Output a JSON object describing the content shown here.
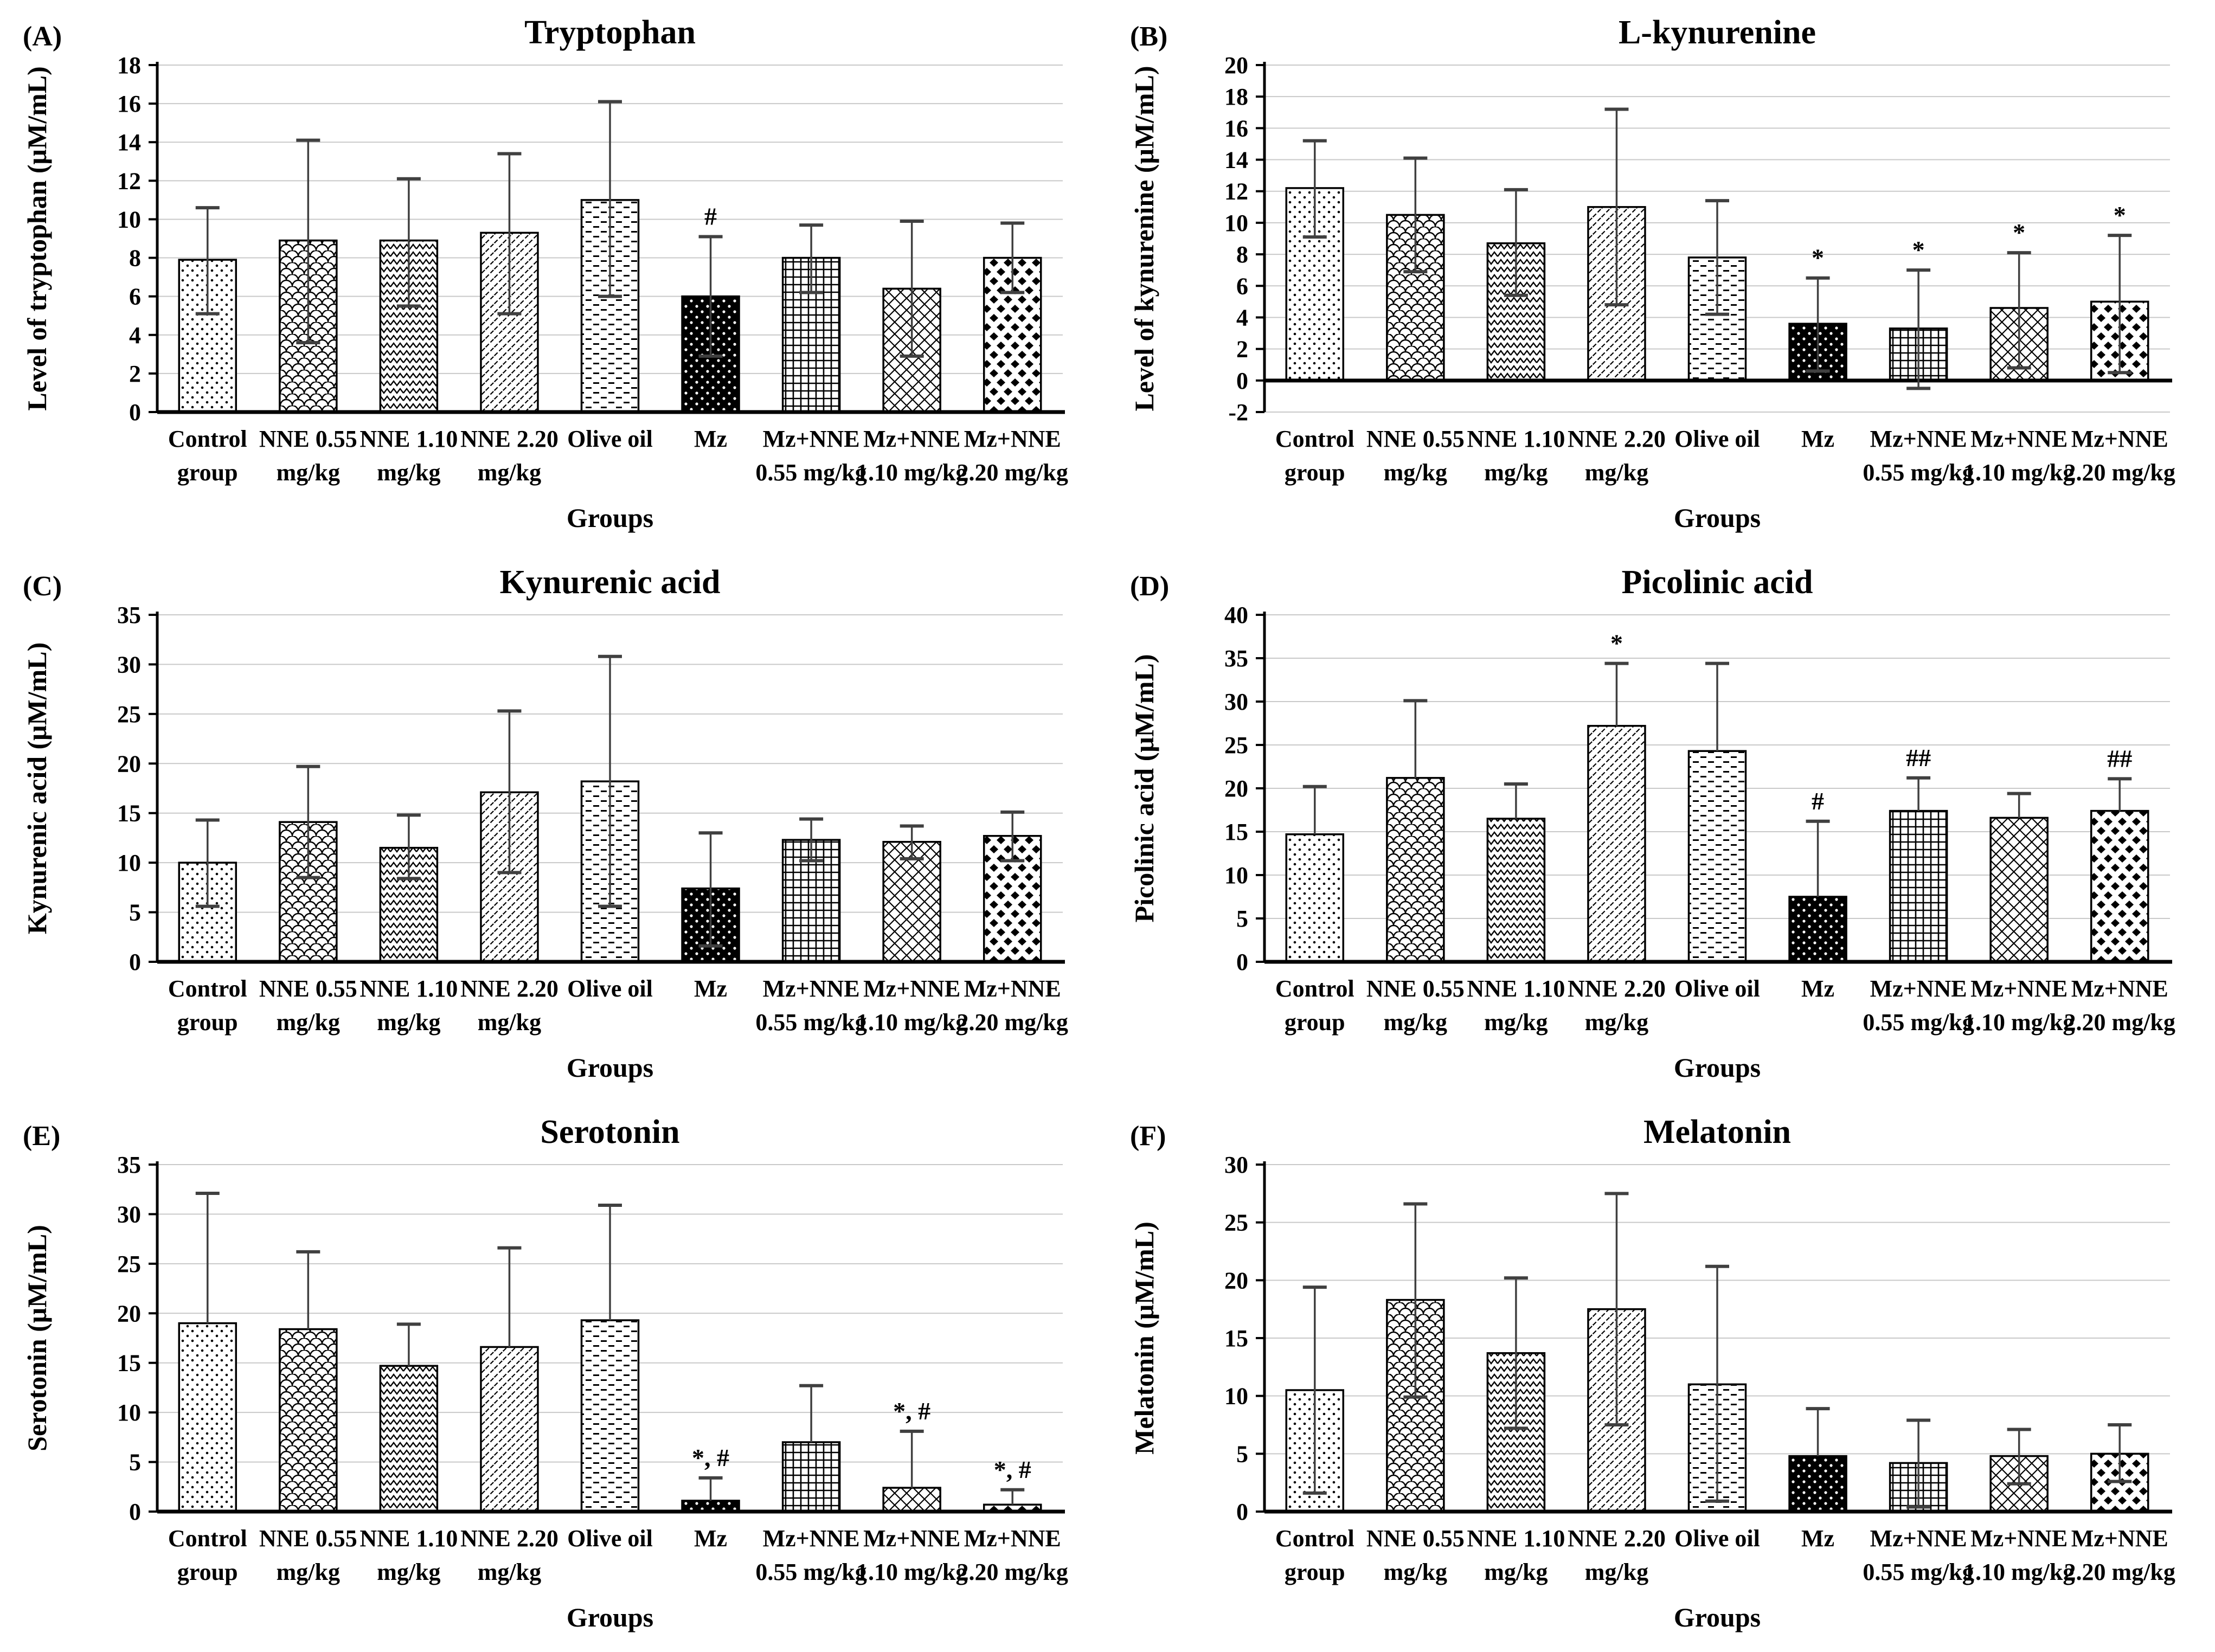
{
  "page": {
    "background": "#ffffff"
  },
  "colors": {
    "bar_stroke": "#000000",
    "bar_fill_base": "#ffffff",
    "grid": "#c9c9c9",
    "error_bar": "#404040",
    "axis": "#000000",
    "text": "#000000"
  },
  "xlabel": "Groups",
  "categories": [
    [
      "Control",
      "group"
    ],
    [
      "NNE 0.55",
      "mg/kg"
    ],
    [
      "NNE 1.10",
      "mg/kg"
    ],
    [
      "NNE 2.20",
      "mg/kg"
    ],
    [
      "Olive oil",
      ""
    ],
    [
      "Mz",
      ""
    ],
    [
      "Mz+NNE",
      "0.55 mg/kg"
    ],
    [
      "Mz+NNE",
      "1.10 mg/kg"
    ],
    [
      "Mz+NNE",
      "2.20 mg/kg"
    ]
  ],
  "pattern_names": [
    "dots",
    "fish-scales",
    "zigzag-chevron",
    "diagonal-dashes",
    "horizontal-dashes",
    "black-with-white-dots",
    "grid-plaid",
    "diamond-crosshatch",
    "black-diamonds"
  ],
  "chart_data": [
    {
      "panel": "(A)",
      "type": "bar",
      "title": "Tryptophan",
      "ylabel": "Level of tryptophan (μM/mL)",
      "ylim": [
        0,
        18
      ],
      "ystep": 2,
      "grid": true,
      "values": [
        7.9,
        8.9,
        8.9,
        9.3,
        11.0,
        6.0,
        8.0,
        6.4,
        8.0
      ],
      "err_low": [
        5.1,
        3.6,
        5.5,
        5.1,
        6.0,
        2.9,
        6.2,
        2.9,
        6.2
      ],
      "err_high": [
        10.6,
        14.1,
        12.1,
        13.4,
        16.1,
        9.1,
        9.7,
        9.9,
        9.8
      ],
      "annotations": {
        "5": "#"
      }
    },
    {
      "panel": "(B)",
      "type": "bar",
      "title": "L-kynurenine",
      "ylabel": "Level of kynurenine (μM/mL)",
      "ylim": [
        -2,
        20
      ],
      "ystep": 2,
      "grid": true,
      "values": [
        12.2,
        10.5,
        8.7,
        11.0,
        7.8,
        3.6,
        3.3,
        4.6,
        5.0
      ],
      "err_low": [
        9.1,
        6.9,
        5.4,
        4.8,
        4.2,
        0.6,
        -0.5,
        0.8,
        0.5
      ],
      "err_high": [
        15.2,
        14.1,
        12.1,
        17.2,
        11.4,
        6.5,
        7.0,
        8.1,
        9.2
      ],
      "annotations": {
        "5": "*",
        "6": "*",
        "7": "*",
        "8": "*"
      }
    },
    {
      "panel": "(C)",
      "type": "bar",
      "title": "Kynurenic acid",
      "ylabel": "Kynurenic acid (μM/mL)",
      "ylim": [
        0,
        35
      ],
      "ystep": 5,
      "grid": true,
      "values": [
        10.0,
        14.1,
        11.5,
        17.1,
        18.2,
        7.4,
        12.3,
        12.1,
        12.7
      ],
      "err_low": [
        5.6,
        8.5,
        8.4,
        9.0,
        5.6,
        1.6,
        10.2,
        10.4,
        10.2
      ],
      "err_high": [
        14.3,
        19.7,
        14.8,
        25.3,
        30.8,
        13.0,
        14.4,
        13.7,
        15.1
      ],
      "annotations": {}
    },
    {
      "panel": "(D)",
      "type": "bar",
      "title": "Picolinic acid",
      "ylabel": "Picolinic acid (μM/mL)",
      "ylim": [
        0,
        40
      ],
      "ystep": 5,
      "grid": true,
      "values": [
        14.7,
        21.2,
        16.5,
        27.2,
        24.3,
        7.5,
        17.4,
        16.6,
        17.4
      ],
      "err_low": [
        null,
        null,
        null,
        null,
        null,
        null,
        null,
        null,
        null
      ],
      "err_high": [
        20.2,
        30.1,
        20.5,
        34.4,
        34.4,
        16.2,
        21.2,
        19.4,
        21.1
      ],
      "annotations": {
        "3": "*",
        "5": "#",
        "6": "##",
        "8": "##"
      }
    },
    {
      "panel": "(E)",
      "type": "bar",
      "title": "Serotonin",
      "ylabel": "Serotonin (μM/mL)",
      "ylim": [
        0,
        35
      ],
      "ystep": 5,
      "grid": true,
      "values": [
        19.0,
        18.4,
        14.7,
        16.6,
        19.3,
        1.1,
        7.0,
        2.4,
        0.7
      ],
      "err_low": [
        null,
        null,
        null,
        null,
        null,
        null,
        null,
        null,
        null
      ],
      "err_high": [
        32.1,
        26.2,
        18.9,
        26.6,
        30.9,
        3.4,
        12.7,
        8.1,
        2.2
      ],
      "annotations": {
        "5": "*, #",
        "7": "*, #",
        "8": "*, #"
      }
    },
    {
      "panel": "(F)",
      "type": "bar",
      "title": "Melatonin",
      "ylabel": "Melatonin (μM/mL)",
      "ylim": [
        0,
        30
      ],
      "ystep": 5,
      "grid": true,
      "values": [
        10.5,
        18.3,
        13.7,
        17.5,
        11.0,
        4.8,
        4.2,
        4.8,
        5.0
      ],
      "err_low": [
        1.6,
        9.9,
        7.2,
        7.5,
        0.9,
        null,
        0.4,
        2.4,
        2.6
      ],
      "err_high": [
        19.4,
        26.6,
        20.2,
        27.5,
        21.2,
        8.9,
        7.9,
        7.1,
        7.5
      ],
      "annotations": {}
    }
  ]
}
